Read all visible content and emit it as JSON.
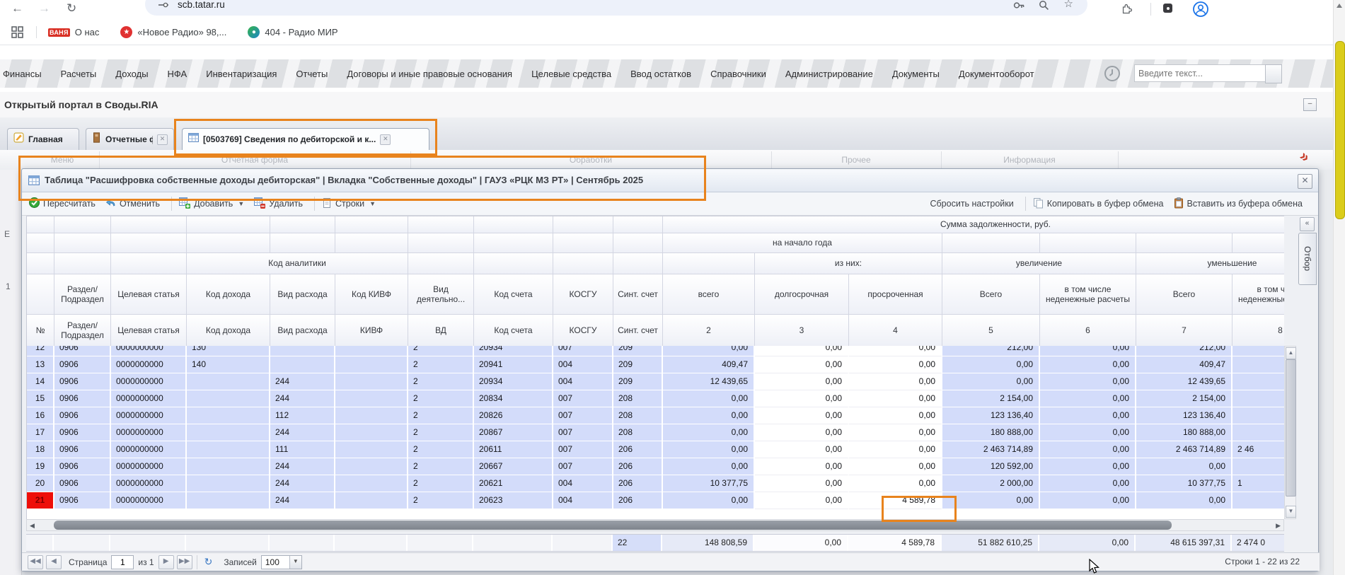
{
  "browser": {
    "url": "scb.tatar.ru",
    "bookmarks": [
      {
        "label": "О нас",
        "favicon_text": "ВАНЯ",
        "favicon_color": "#d93025"
      },
      {
        "label": "«Новое Радио» 98,...",
        "favicon": "star-circle",
        "favicon_color": "#e03131",
        "glyph": "★"
      },
      {
        "label": "404 - Радио МИР",
        "favicon": "mir-circle",
        "favicon_color": "#2ba84a",
        "glyph": "●"
      }
    ]
  },
  "app_menu": {
    "items": [
      "Финансы",
      "Расчеты",
      "Доходы",
      "НФА",
      "Инвентаризация",
      "Отчеты",
      "Договоры и иные правовые основания",
      "Целевые средства",
      "Ввод остатков",
      "Справочники",
      "Администрирование",
      "Документы",
      "Документооборот"
    ],
    "search_placeholder": "Введите текст..."
  },
  "portal": {
    "title": "Открытый портал в Своды.RIA"
  },
  "tabs": [
    {
      "label": "Главная",
      "icon": "home-tab-icon",
      "closable": false,
      "active": false
    },
    {
      "label": "Отчетные формы",
      "icon": "report-forms-icon",
      "closable": true,
      "active": false
    },
    {
      "label": "[0503769] Сведения по дебиторской и к...",
      "icon": "table-icon",
      "closable": true,
      "active": true
    }
  ],
  "ribbon_groups": [
    "Меню",
    "Отчетная форма",
    "Обработки",
    "Прочее",
    "Информация"
  ],
  "dialog": {
    "title": "Таблица \"Расшифровка собственные доходы дебиторская\" | Вкладка \"Собственные доходы\" | ГАУЗ «РЦК МЗ РТ» | Сентябрь 2025",
    "toolbar_left": [
      {
        "label": "Пересчитать",
        "icon": "recalc-check-icon",
        "menu": false
      },
      {
        "label": "Отменить",
        "icon": "undo-icon",
        "menu": false,
        "sep_after": true
      },
      {
        "label": "Добавить",
        "icon": "table-add-icon",
        "menu": true
      },
      {
        "label": "Удалить",
        "icon": "table-delete-icon",
        "menu": false,
        "sep_after": true
      },
      {
        "label": "Строки",
        "icon": "rows-icon",
        "menu": true
      }
    ],
    "toolbar_right": [
      {
        "label": "Сбросить настройки",
        "icon": "",
        "sep_after": true
      },
      {
        "label": "Копировать в буфер обмена",
        "icon": "copy-icon"
      },
      {
        "label": "Вставить из буфера обмена",
        "icon": "paste-icon"
      }
    ],
    "filter_tab": "Отбор"
  },
  "grid": {
    "band_sum": "Сумма задолженности, руб.",
    "band_year_start": "на начало года",
    "band_analytics": "Код аналитики",
    "band_of_them": "из них:",
    "band_increase": "увеличение",
    "band_decrease": "уменьшение",
    "titles": [
      "",
      "Раздел/ Подраздел",
      "Целевая статья",
      "Код дохода",
      "Вид рас­хода",
      "Код КИВФ",
      "Вид деятельно...",
      "Код счета",
      "КОСГУ",
      "Синт. счет",
      "всего",
      "долгосрочная",
      "просроченная",
      "Всего",
      "в том числе неденежные расчеты",
      "Всего",
      "в том числе неденежные расчеты"
    ],
    "columns": [
      "№",
      "Раздел/ Подраздел",
      "Целевая статья",
      "Код дохода",
      "Вид расхода",
      "КИВФ",
      "ВД",
      "Код счета",
      "КОСГУ",
      "Синт. счет",
      "2",
      "3",
      "4",
      "5",
      "6",
      "7",
      "8"
    ],
    "rows": [
      [
        "12",
        "0906",
        "0000000000",
        "130",
        "",
        "",
        "2",
        "20934",
        "007",
        "209",
        "0,00",
        "0,00",
        "0,00",
        "212,00",
        "0,00",
        "212,00",
        ""
      ],
      [
        "13",
        "0906",
        "0000000000",
        "140",
        "",
        "",
        "2",
        "20941",
        "004",
        "209",
        "409,47",
        "0,00",
        "0,00",
        "0,00",
        "0,00",
        "409,47",
        ""
      ],
      [
        "14",
        "0906",
        "0000000000",
        "",
        "244",
        "",
        "2",
        "20934",
        "004",
        "209",
        "12 439,65",
        "0,00",
        "0,00",
        "0,00",
        "0,00",
        "12 439,65",
        ""
      ],
      [
        "15",
        "0906",
        "0000000000",
        "",
        "244",
        "",
        "2",
        "20834",
        "007",
        "208",
        "0,00",
        "0,00",
        "0,00",
        "2 154,00",
        "0,00",
        "2 154,00",
        ""
      ],
      [
        "16",
        "0906",
        "0000000000",
        "",
        "112",
        "",
        "2",
        "20826",
        "007",
        "208",
        "0,00",
        "0,00",
        "0,00",
        "123 136,40",
        "0,00",
        "123 136,40",
        ""
      ],
      [
        "17",
        "0906",
        "0000000000",
        "",
        "244",
        "",
        "2",
        "20867",
        "007",
        "208",
        "0,00",
        "0,00",
        "0,00",
        "180 888,00",
        "0,00",
        "180 888,00",
        ""
      ],
      [
        "18",
        "0906",
        "0000000000",
        "",
        "111",
        "",
        "2",
        "20611",
        "007",
        "206",
        "0,00",
        "0,00",
        "0,00",
        "2 463 714,89",
        "0,00",
        "2 463 714,89",
        "2 46"
      ],
      [
        "19",
        "0906",
        "0000000000",
        "",
        "244",
        "",
        "2",
        "20667",
        "007",
        "206",
        "0,00",
        "0,00",
        "0,00",
        "120 592,00",
        "0,00",
        "0,00",
        ""
      ],
      [
        "20",
        "0906",
        "0000000000",
        "",
        "244",
        "",
        "2",
        "20621",
        "004",
        "206",
        "10 377,75",
        "0,00",
        "0,00",
        "2 000,00",
        "0,00",
        "10 377,75",
        "1"
      ],
      [
        "21",
        "0906",
        "0000000000",
        "",
        "244",
        "",
        "2",
        "20623",
        "004",
        "206",
        "0,00",
        "0,00",
        "4 589,78",
        "0,00",
        "0,00",
        "0,00",
        ""
      ]
    ],
    "partial_row": "12",
    "highlight_row": "21",
    "footer": [
      "",
      "",
      "",
      "",
      "",
      "",
      "",
      "",
      "",
      "22",
      "148 808,59",
      "0,00",
      "4 589,78",
      "51 882 610,25",
      "0,00",
      "48 615 397,31",
      "2 474 0"
    ]
  },
  "pager": {
    "page_label": "Страница",
    "page_value": "1",
    "page_of": "из 1",
    "records_label": "Записей",
    "records_value": "100",
    "status": "Строки 1 - 22 из 22"
  },
  "left_fragments": [
    "Е",
    "1"
  ],
  "colors": {
    "row_blue": "#d3dcfa",
    "highlight_red": "#ee0f0a",
    "annotation_orange": "#e8831d",
    "scroll_yellow": "#dbcd1b"
  }
}
